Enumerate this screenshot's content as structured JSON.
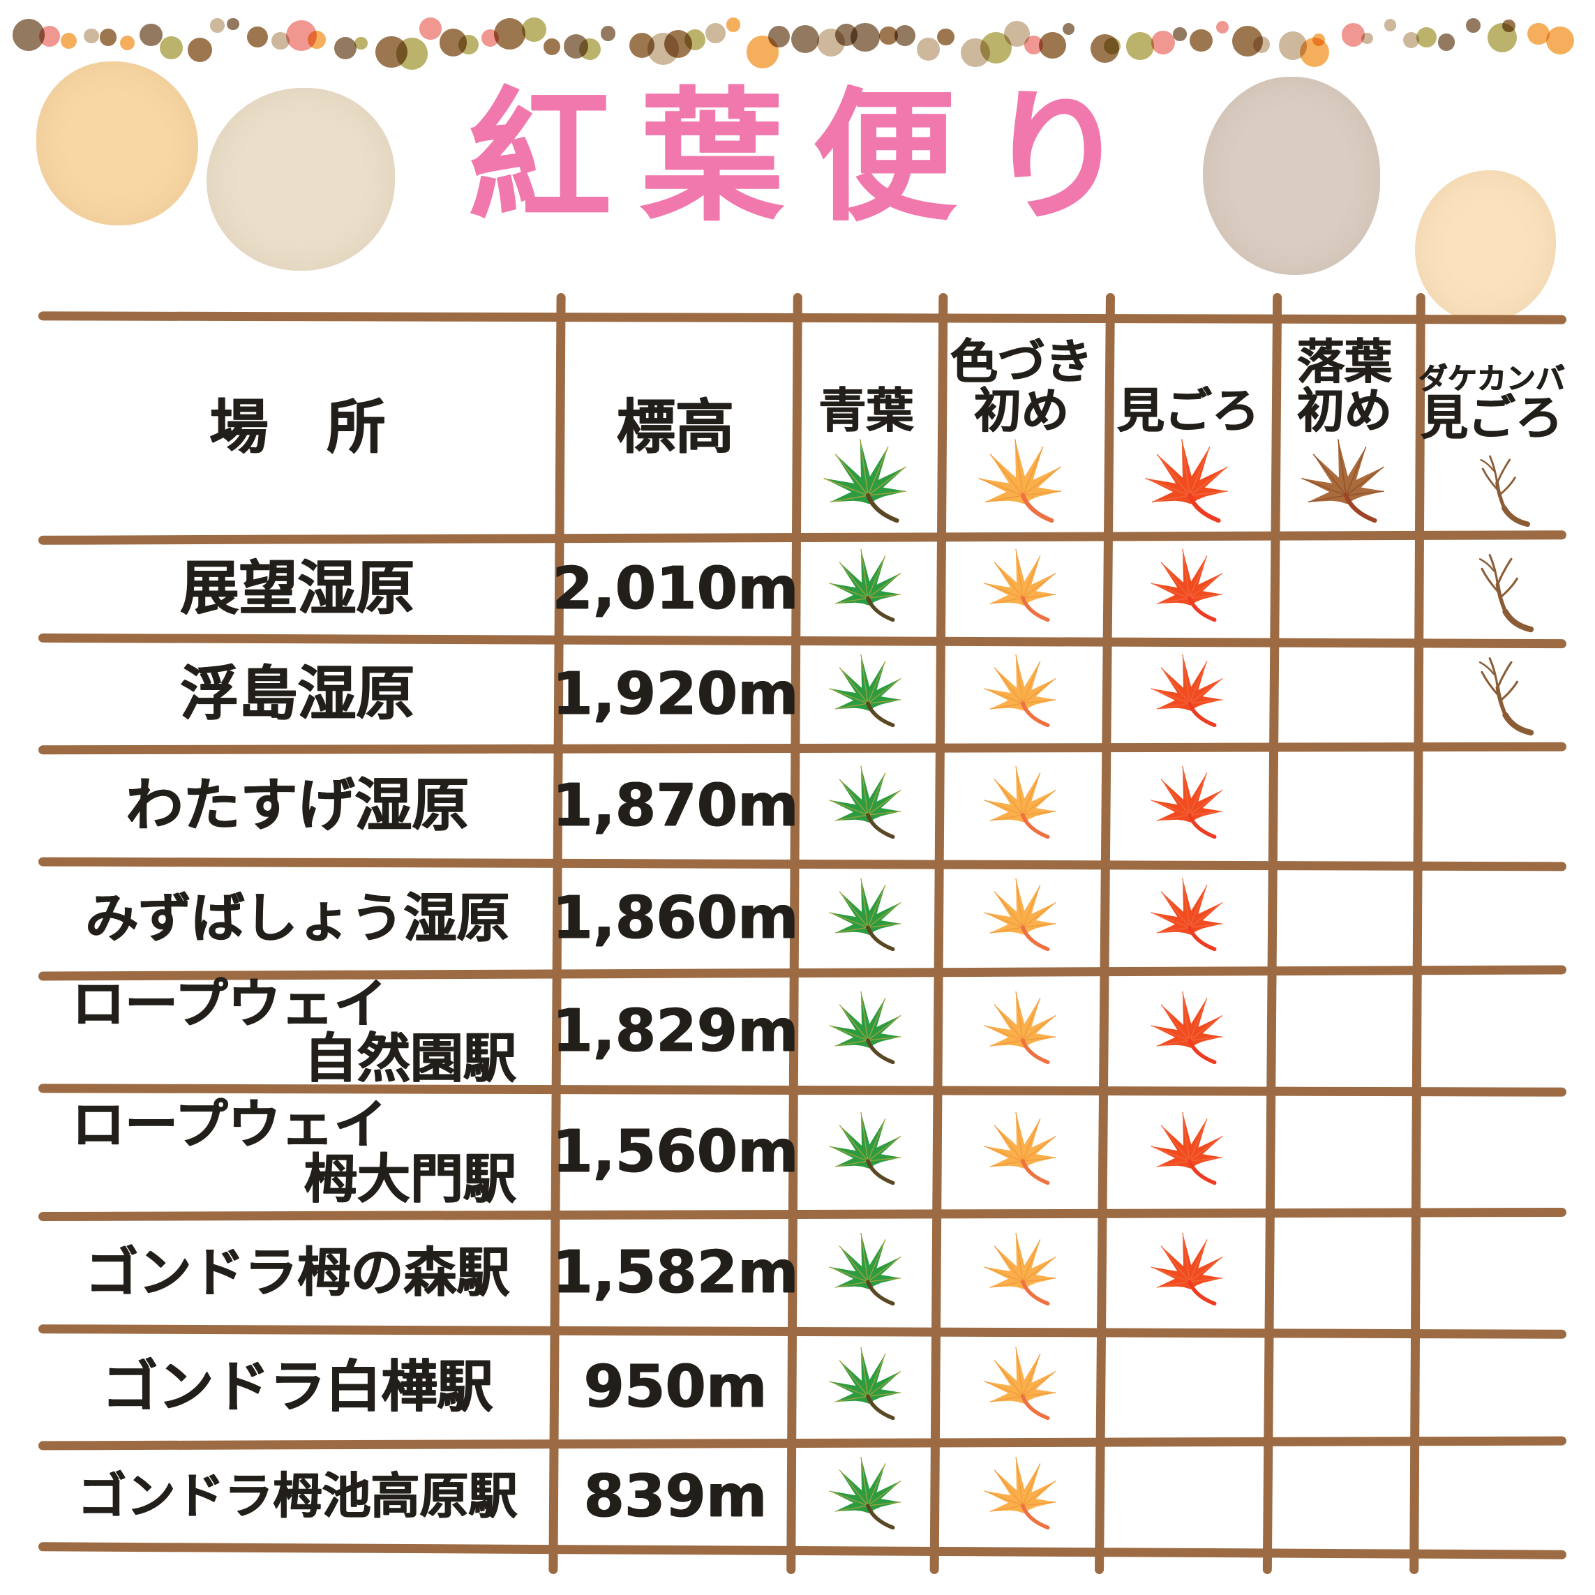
{
  "title": "紅葉便り",
  "table": {
    "header": {
      "place": "場　所",
      "elevation": "標高",
      "stages": [
        {
          "id": "aoba",
          "lines": [
            "青葉"
          ],
          "leaf": "green"
        },
        {
          "id": "irozuki-hajime",
          "lines": [
            "色づき",
            "初め"
          ],
          "leaf": "orange"
        },
        {
          "id": "migoro",
          "lines": [
            "見ごろ"
          ],
          "leaf": "red"
        },
        {
          "id": "rakuyou-hajime",
          "lines": [
            "落葉",
            "初め"
          ],
          "leaf": "brown"
        },
        {
          "id": "dakekanba-migoro",
          "lines": [
            "ダケカンバ",
            "見ごろ"
          ],
          "leaf": "branch",
          "first_line_small": true
        }
      ]
    },
    "rows": [
      {
        "place": [
          "展望湿原"
        ],
        "elevation": "2,010m",
        "stages": [
          "green",
          "orange",
          "red",
          null,
          "branch"
        ]
      },
      {
        "place": [
          "浮島湿原"
        ],
        "elevation": "1,920m",
        "stages": [
          "green",
          "orange",
          "red",
          null,
          "branch"
        ]
      },
      {
        "place": [
          "わたすげ湿原"
        ],
        "elevation": "1,870m",
        "stages": [
          "green",
          "orange",
          "red",
          null,
          null
        ]
      },
      {
        "place": [
          "みずばしょう湿原"
        ],
        "elevation": "1,860m",
        "stages": [
          "green",
          "orange",
          "red",
          null,
          null
        ]
      },
      {
        "place": [
          "ロープウェイ",
          "自然園駅"
        ],
        "elevation": "1,829m",
        "stages": [
          "green",
          "orange",
          "red",
          null,
          null
        ]
      },
      {
        "place": [
          "ロープウェイ",
          "栂大門駅"
        ],
        "elevation": "1,560m",
        "stages": [
          "green",
          "orange",
          "red",
          null,
          null
        ]
      },
      {
        "place": [
          "ゴンドラ栂の森駅"
        ],
        "elevation": "1,582m",
        "stages": [
          "green",
          "orange",
          "red",
          null,
          null
        ]
      },
      {
        "place": [
          "ゴンドラ白樺駅"
        ],
        "elevation": "950m",
        "stages": [
          "green",
          "orange",
          null,
          null,
          null
        ]
      },
      {
        "place": [
          "ゴンドラ栂池高原駅"
        ],
        "elevation": "839m",
        "stages": [
          "green",
          "orange",
          null,
          null,
          null
        ]
      }
    ]
  },
  "chart_data": {
    "type": "table",
    "title": "紅葉便り",
    "columns": [
      "場所",
      "標高",
      "青葉",
      "色づき初め",
      "見ごろ",
      "落葉初め",
      "ダケカンバ見ごろ"
    ],
    "legend": {
      "青葉": "green maple leaf",
      "色づき初め": "orange maple leaf",
      "見ごろ": "red maple leaf",
      "落葉初め": "brown maple leaf",
      "ダケカンバ見ごろ": "bare branch"
    },
    "rows": [
      {
        "place": "展望湿原",
        "elevation": "2,010m",
        "aoba": true,
        "irozuki_hajime": true,
        "migoro": true,
        "rakuyou_hajime": false,
        "dakekanba_migoro": true
      },
      {
        "place": "浮島湿原",
        "elevation": "1,920m",
        "aoba": true,
        "irozuki_hajime": true,
        "migoro": true,
        "rakuyou_hajime": false,
        "dakekanba_migoro": true
      },
      {
        "place": "わたすげ湿原",
        "elevation": "1,870m",
        "aoba": true,
        "irozuki_hajime": true,
        "migoro": true,
        "rakuyou_hajime": false,
        "dakekanba_migoro": false
      },
      {
        "place": "みずばしょう湿原",
        "elevation": "1,860m",
        "aoba": true,
        "irozuki_hajime": true,
        "migoro": true,
        "rakuyou_hajime": false,
        "dakekanba_migoro": false
      },
      {
        "place": "ロープウェイ自然園駅",
        "elevation": "1,829m",
        "aoba": true,
        "irozuki_hajime": true,
        "migoro": true,
        "rakuyou_hajime": false,
        "dakekanba_migoro": false
      },
      {
        "place": "ロープウェイ栂大門駅",
        "elevation": "1,560m",
        "aoba": true,
        "irozuki_hajime": true,
        "migoro": true,
        "rakuyou_hajime": false,
        "dakekanba_migoro": false
      },
      {
        "place": "ゴンドラ栂の森駅",
        "elevation": "1,582m",
        "aoba": true,
        "irozuki_hajime": true,
        "migoro": true,
        "rakuyou_hajime": false,
        "dakekanba_migoro": false
      },
      {
        "place": "ゴンドラ白樺駅",
        "elevation": "950m",
        "aoba": true,
        "irozuki_hajime": true,
        "migoro": false,
        "rakuyou_hajime": false,
        "dakekanba_migoro": false
      },
      {
        "place": "ゴンドラ栂池高原駅",
        "elevation": "839m",
        "aoba": true,
        "irozuki_hajime": true,
        "migoro": false,
        "rakuyou_hajime": false,
        "dakekanba_migoro": false
      }
    ]
  },
  "colors": {
    "title_pink": "#f178ad",
    "text_black": "#221e1a",
    "grid_brown": "#9c6b43",
    "branch_brown": "#8a5c35",
    "leaf_green": {
      "fill": "#2d9c41",
      "vein": "#9fa23a",
      "stem": "#5a4723"
    },
    "leaf_orange": {
      "fill": "#fbaf4b",
      "vein": "#ef9a3c",
      "stem": "#ee7141"
    },
    "leaf_red": {
      "fill": "#f14c20",
      "vein": "#f3653a",
      "stem": "#ee3c23"
    },
    "leaf_brown": {
      "fill": "#a96b3c",
      "vein": "#905429",
      "stem": "#9c4424"
    },
    "dot_palette": [
      "#f5a84e",
      "#ee8e87",
      "#c9b294",
      "#b5ad5e",
      "#8a6e51",
      "#946a40"
    ],
    "watercolor_circles": [
      "#f8d7a4",
      "#ebdfca",
      "#d9ccc1",
      "#fbe2bd"
    ]
  }
}
